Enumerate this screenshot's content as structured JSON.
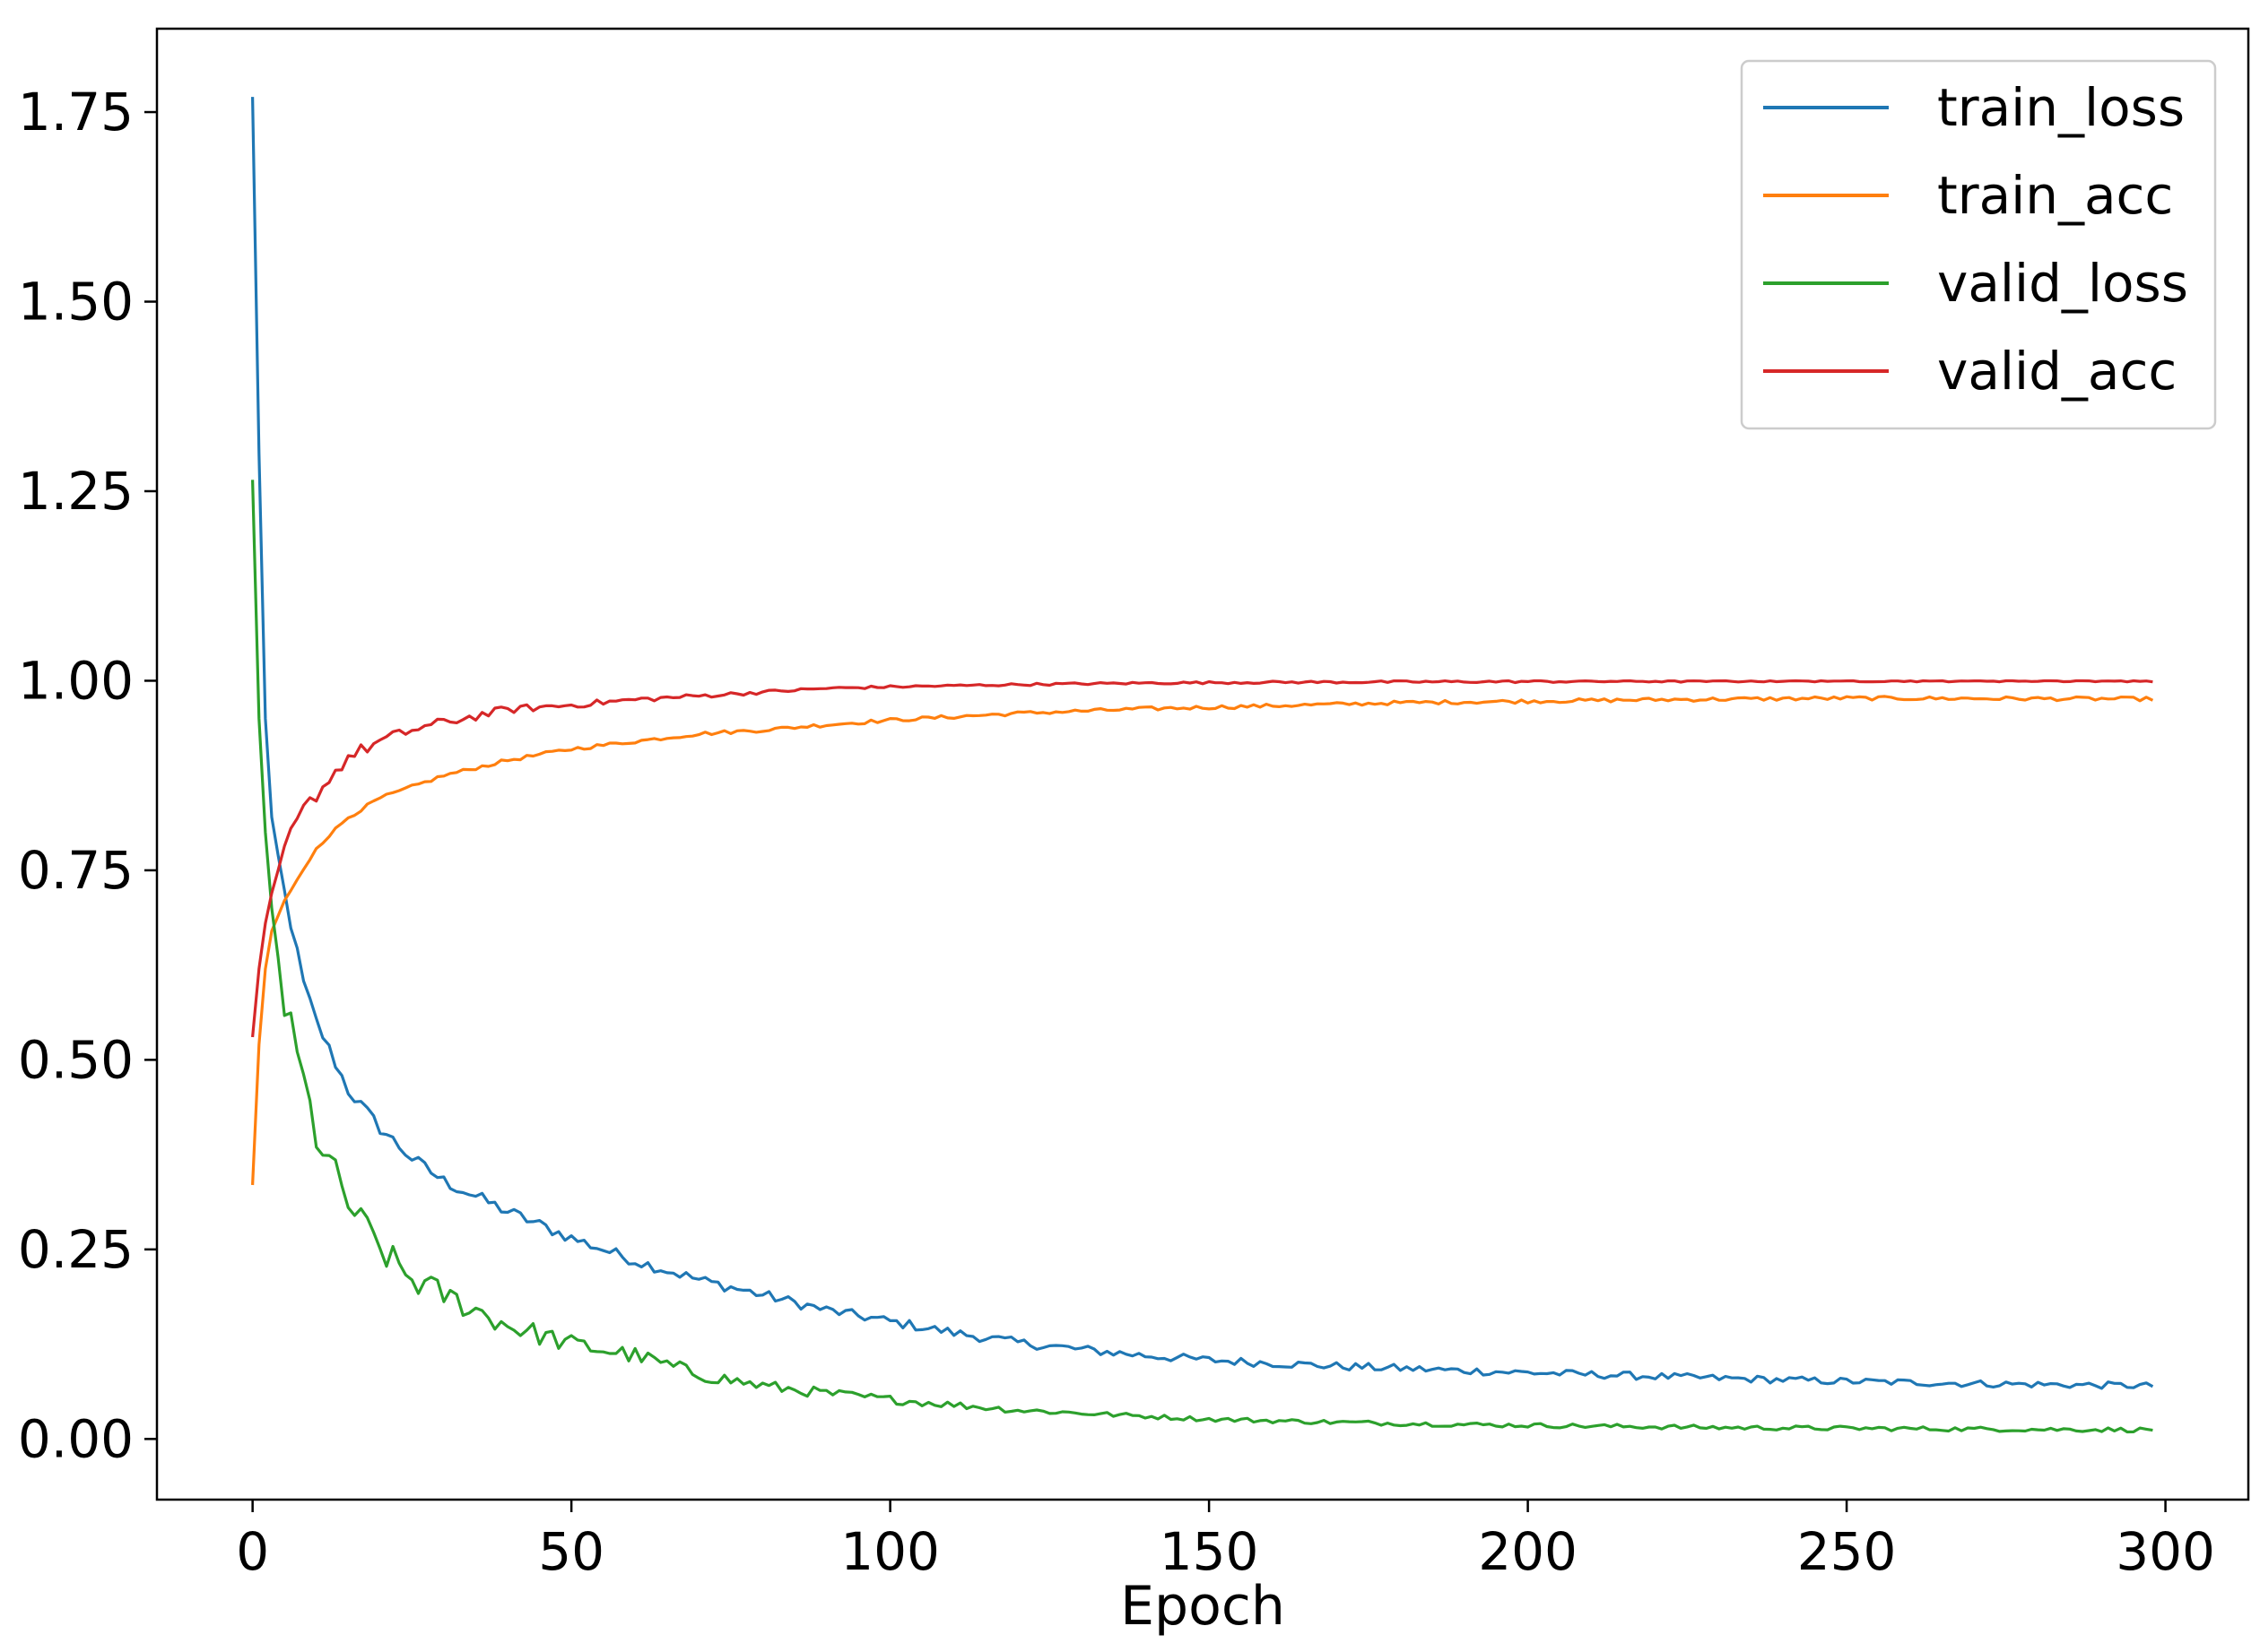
{
  "chart_data": {
    "type": "line",
    "title": "",
    "xlabel": "Epoch",
    "ylabel": "",
    "xlim": [
      -15,
      313
    ],
    "ylim": [
      -0.08,
      1.86
    ],
    "xticks": [
      0,
      50,
      100,
      150,
      200,
      250,
      300
    ],
    "xtick_labels": [
      "0",
      "50",
      "100",
      "150",
      "200",
      "250",
      "300"
    ],
    "yticks": [
      0.0,
      0.25,
      0.5,
      0.75,
      1.0,
      1.25,
      1.5,
      1.75
    ],
    "ytick_labels": [
      "0.00",
      "0.25",
      "0.50",
      "0.75",
      "1.00",
      "1.25",
      "1.50",
      "1.75"
    ],
    "grid": false,
    "legend_position": "top-right",
    "epochs": 299,
    "series": [
      {
        "name": "train_loss",
        "color": "#1f77b4",
        "points": [
          [
            0,
            1.77
          ],
          [
            1,
            1.3
          ],
          [
            2,
            0.95
          ],
          [
            3,
            0.82
          ],
          [
            5,
            0.72
          ],
          [
            8,
            0.6
          ],
          [
            10,
            0.55
          ],
          [
            15,
            0.46
          ],
          [
            20,
            0.41
          ],
          [
            25,
            0.37
          ],
          [
            30,
            0.34
          ],
          [
            40,
            0.3
          ],
          [
            50,
            0.265
          ],
          [
            60,
            0.235
          ],
          [
            70,
            0.21
          ],
          [
            80,
            0.19
          ],
          [
            90,
            0.17
          ],
          [
            100,
            0.155
          ],
          [
            110,
            0.14
          ],
          [
            120,
            0.127
          ],
          [
            130,
            0.118
          ],
          [
            140,
            0.11
          ],
          [
            150,
            0.104
          ],
          [
            170,
            0.096
          ],
          [
            190,
            0.09
          ],
          [
            210,
            0.085
          ],
          [
            230,
            0.08
          ],
          [
            250,
            0.076
          ],
          [
            270,
            0.073
          ],
          [
            298,
            0.07
          ]
        ]
      },
      {
        "name": "train_acc",
        "color": "#ff7f0e",
        "points": [
          [
            0,
            0.335
          ],
          [
            1,
            0.52
          ],
          [
            2,
            0.62
          ],
          [
            3,
            0.67
          ],
          [
            5,
            0.71
          ],
          [
            8,
            0.75
          ],
          [
            10,
            0.78
          ],
          [
            15,
            0.82
          ],
          [
            20,
            0.845
          ],
          [
            25,
            0.86
          ],
          [
            30,
            0.875
          ],
          [
            40,
            0.895
          ],
          [
            50,
            0.91
          ],
          [
            60,
            0.92
          ],
          [
            70,
            0.93
          ],
          [
            80,
            0.935
          ],
          [
            90,
            0.942
          ],
          [
            100,
            0.948
          ],
          [
            120,
            0.957
          ],
          [
            140,
            0.963
          ],
          [
            160,
            0.967
          ],
          [
            180,
            0.971
          ],
          [
            200,
            0.973
          ],
          [
            220,
            0.975
          ],
          [
            250,
            0.977
          ],
          [
            298,
            0.976
          ]
        ]
      },
      {
        "name": "valid_loss",
        "color": "#2ca02c",
        "points": [
          [
            0,
            1.265
          ],
          [
            1,
            0.95
          ],
          [
            2,
            0.8
          ],
          [
            3,
            0.7
          ],
          [
            5,
            0.57
          ],
          [
            8,
            0.47
          ],
          [
            10,
            0.4
          ],
          [
            15,
            0.31
          ],
          [
            20,
            0.25
          ],
          [
            25,
            0.21
          ],
          [
            30,
            0.19
          ],
          [
            40,
            0.15
          ],
          [
            50,
            0.125
          ],
          [
            60,
            0.11
          ],
          [
            70,
            0.085
          ],
          [
            80,
            0.07
          ],
          [
            90,
            0.06
          ],
          [
            100,
            0.052
          ],
          [
            110,
            0.045
          ],
          [
            120,
            0.038
          ],
          [
            130,
            0.034
          ],
          [
            140,
            0.03
          ],
          [
            150,
            0.026
          ],
          [
            170,
            0.022
          ],
          [
            190,
            0.019
          ],
          [
            210,
            0.017
          ],
          [
            230,
            0.015
          ],
          [
            250,
            0.014
          ],
          [
            270,
            0.013
          ],
          [
            298,
            0.012
          ]
        ]
      },
      {
        "name": "valid_acc",
        "color": "#d62728",
        "points": [
          [
            0,
            0.53
          ],
          [
            1,
            0.62
          ],
          [
            2,
            0.68
          ],
          [
            3,
            0.72
          ],
          [
            5,
            0.78
          ],
          [
            8,
            0.83
          ],
          [
            10,
            0.85
          ],
          [
            12,
            0.87
          ],
          [
            15,
            0.9
          ],
          [
            20,
            0.92
          ],
          [
            25,
            0.935
          ],
          [
            30,
            0.945
          ],
          [
            40,
            0.962
          ],
          [
            50,
            0.968
          ],
          [
            60,
            0.975
          ],
          [
            70,
            0.98
          ],
          [
            80,
            0.985
          ],
          [
            90,
            0.99
          ],
          [
            100,
            0.992
          ],
          [
            120,
            0.995
          ],
          [
            140,
            0.997
          ],
          [
            160,
            0.998
          ],
          [
            200,
            0.999
          ],
          [
            250,
            1.0
          ],
          [
            298,
            1.0
          ]
        ]
      }
    ]
  }
}
